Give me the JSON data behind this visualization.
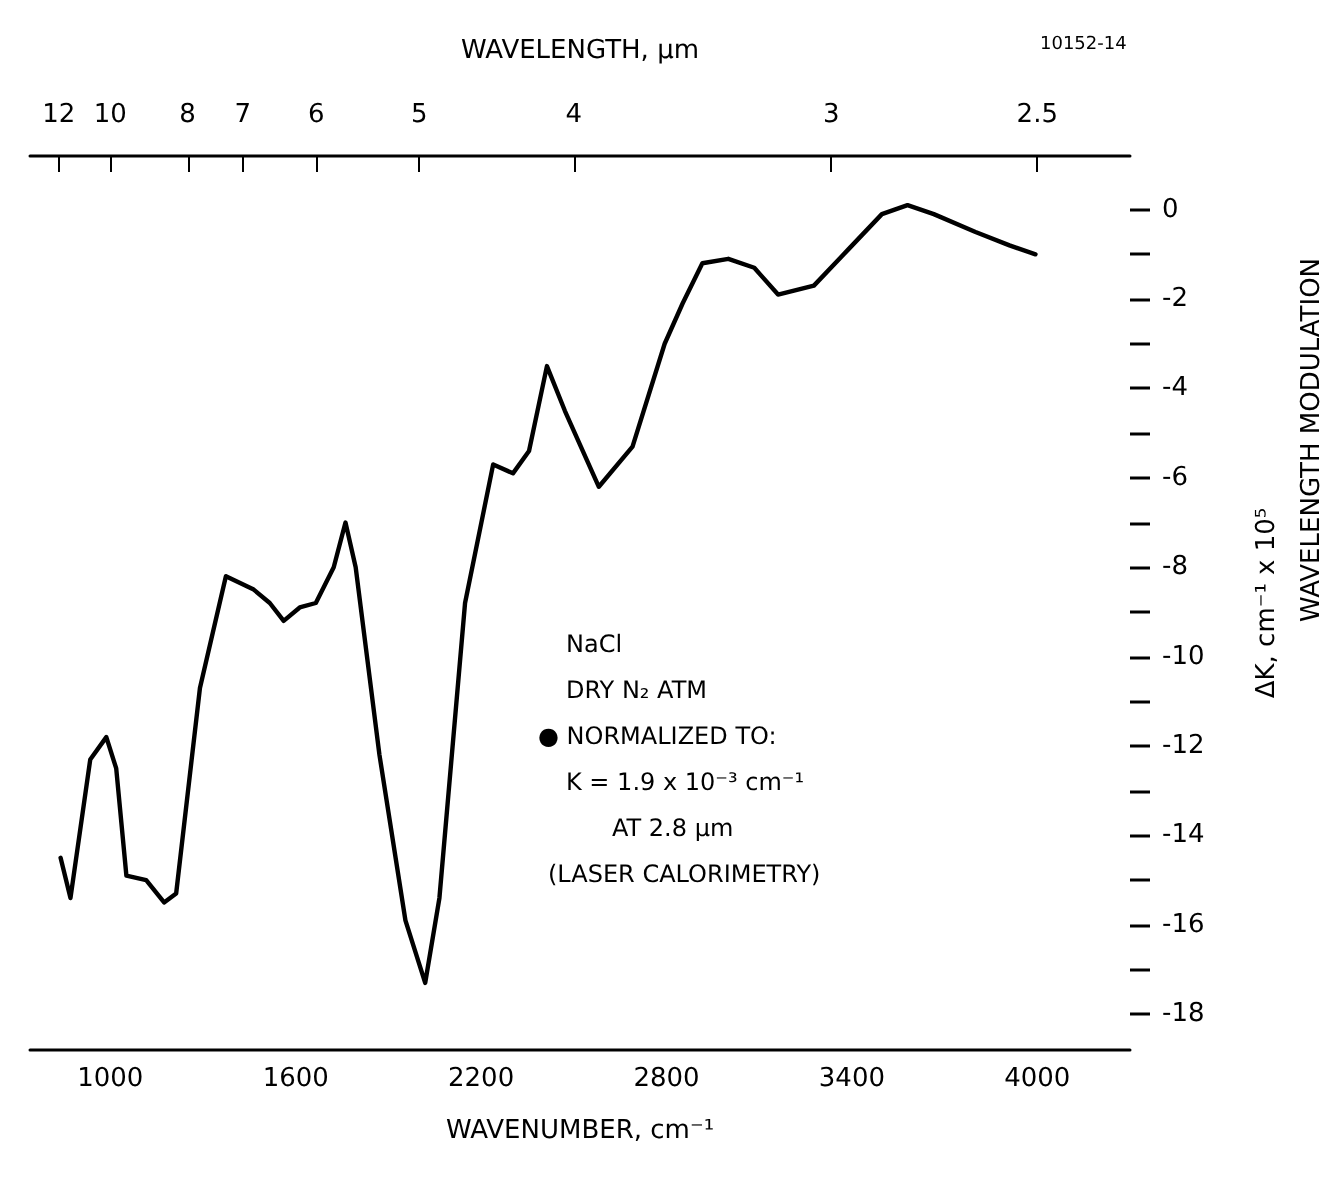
{
  "chart_data": {
    "type": "line",
    "xlabel": "WAVENUMBER, cm⁻¹",
    "x2label": "WAVELENGTH, µm",
    "ylabel": "ΔK, cm⁻¹ x 10⁵",
    "annotations": [
      "10152-14",
      "NaCl",
      "DRY N₂ ATM",
      "● NORMALIZED TO:",
      "K = 1.9 x 10⁻³ cm⁻¹",
      "AT 2.8 µm",
      "(LASER CALORIMETRY)",
      "WAVELENGTH MODULATION",
      "12",
      "10",
      "8",
      "7",
      "6",
      "5",
      "4",
      "3",
      "2.5"
    ],
    "x": [
      839,
      871,
      935,
      987,
      1019,
      1052,
      1116,
      1174,
      1213,
      1290,
      1374,
      1464,
      1516,
      1561,
      1613,
      1665,
      1723,
      1761,
      1794,
      1871,
      1955,
      2019,
      2065,
      2148,
      2239,
      2303,
      2355,
      2413,
      2471,
      2581,
      2690,
      2794,
      2852,
      2916,
      3000,
      3084,
      3161,
      3277,
      3387,
      3497,
      3580,
      3665,
      3800,
      3910,
      3994
    ],
    "series": [
      {
        "color": "#000000",
        "values": [
          -14.5,
          -15.4,
          -12.3,
          -11.8,
          -12.5,
          -14.9,
          -15.0,
          -15.5,
          -15.3,
          -10.7,
          -8.2,
          -8.5,
          -8.8,
          -9.2,
          -8.9,
          -8.8,
          -8.0,
          -7.0,
          -8.0,
          -12.2,
          -15.9,
          -17.3,
          -15.4,
          -8.8,
          -5.7,
          -5.9,
          -5.4,
          -3.5,
          -4.5,
          -6.2,
          -5.3,
          -3.0,
          -2.1,
          -1.2,
          -1.1,
          -1.3,
          -1.9,
          -1.7,
          -0.9,
          -0.1,
          0.1,
          -0.1,
          -0.5,
          -0.8,
          -1.0
        ]
      }
    ],
    "xlim": [
      740,
      4300
    ],
    "xticks": [
      1000,
      1600,
      2200,
      2800,
      3400,
      4000
    ],
    "ylim": [
      -18.8,
      1.2
    ],
    "yticks": [
      0,
      {
        "value": -1,
        "label": null
      },
      -2,
      {
        "value": -3,
        "label": null
      },
      -4,
      {
        "value": -5,
        "label": null
      },
      -6,
      {
        "value": -7,
        "label": null
      },
      -8,
      {
        "value": -9,
        "label": null
      },
      -10,
      {
        "value": -11,
        "label": null
      },
      -12,
      {
        "value": -13,
        "label": null
      },
      -14,
      {
        "value": -15,
        "label": null
      },
      -16,
      {
        "value": -17,
        "label": null
      },
      -18
    ],
    "grid": false,
    "marker": "none",
    "line_style": "solid"
  }
}
